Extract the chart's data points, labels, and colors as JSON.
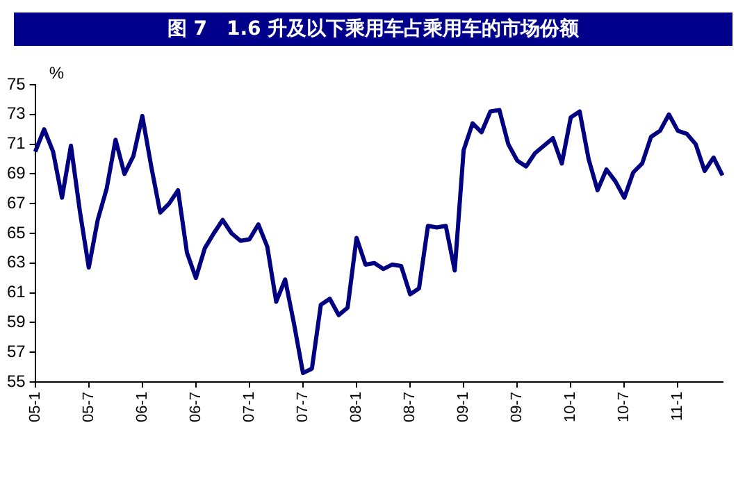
{
  "chart_data": {
    "type": "line",
    "title": "图 7　1.6 升及以下乘用车占乘用车的市场份额",
    "ylabel": "%",
    "categories": [
      "05-1",
      null,
      null,
      null,
      null,
      null,
      "05-7",
      null,
      null,
      null,
      null,
      null,
      "06-1",
      null,
      null,
      null,
      null,
      null,
      "06-7",
      null,
      null,
      null,
      null,
      null,
      "07-1",
      null,
      null,
      null,
      null,
      null,
      "07-7",
      null,
      null,
      null,
      null,
      null,
      "08-1",
      null,
      null,
      null,
      null,
      null,
      "08-7",
      null,
      null,
      null,
      null,
      null,
      "09-1",
      null,
      null,
      null,
      null,
      null,
      "09-7",
      null,
      null,
      null,
      null,
      null,
      "10-1",
      null,
      null,
      null,
      null,
      null,
      "10-7",
      null,
      null,
      null,
      null,
      null,
      "11-1",
      null,
      null,
      null,
      null,
      null
    ],
    "series": [
      {
        "color": "#000080",
        "values": [
          70.5,
          72.0,
          70.5,
          67.4,
          70.9,
          66.5,
          62.7,
          65.9,
          68.0,
          71.3,
          69.0,
          70.2,
          72.9,
          69.5,
          66.4,
          67.0,
          67.9,
          63.7,
          62.0,
          64.0,
          65.0,
          65.9,
          65.0,
          64.5,
          64.6,
          65.6,
          64.1,
          60.4,
          61.9,
          58.9,
          55.6,
          55.9,
          60.2,
          60.6,
          59.5,
          60.0,
          64.7,
          62.9,
          63.0,
          62.6,
          62.9,
          62.8,
          60.9,
          61.3,
          65.5,
          65.4,
          65.5,
          62.5,
          70.6,
          72.4,
          71.8,
          73.2,
          73.3,
          71.0,
          69.9,
          69.5,
          70.4,
          70.9,
          71.4,
          69.7,
          72.8,
          73.2,
          70.0,
          67.9,
          69.3,
          68.5,
          67.4,
          69.1,
          69.7,
          71.5,
          71.9,
          73.0,
          71.9,
          71.7,
          71.0,
          69.2,
          70.1,
          68.9
        ]
      }
    ],
    "ylim": [
      55,
      75
    ],
    "yticks": [
      55,
      57,
      59,
      61,
      63,
      65,
      67,
      69,
      71,
      73,
      75
    ],
    "grid": false,
    "legend": false,
    "marker": "none",
    "line_style": "solid"
  }
}
